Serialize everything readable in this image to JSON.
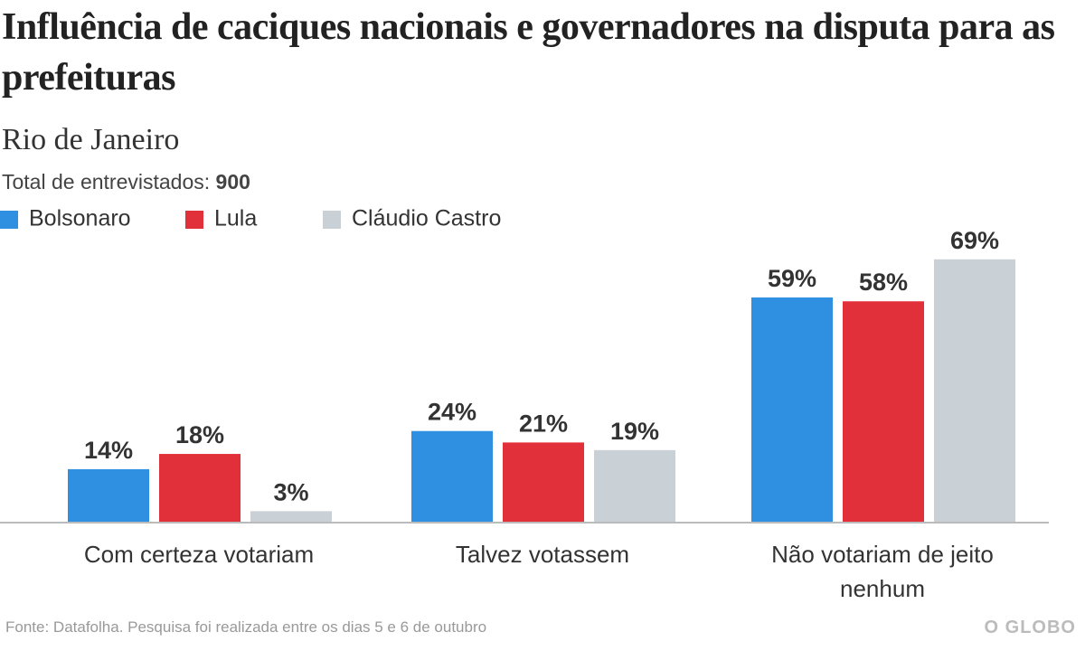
{
  "chart_data": {
    "type": "bar",
    "title": "Influência de caciques nacionais e governadores na disputa para as prefeituras",
    "subtitle": "Rio de Janeiro",
    "sample_label": "Total de entrevistados:",
    "sample_size": 900,
    "categories": [
      "Com certeza votariam",
      "Talvez votassem",
      "Não votariam de jeito nenhum"
    ],
    "series": [
      {
        "name": "Bolsonaro",
        "color": "#2f8fe0",
        "values": [
          14,
          24,
          59
        ],
        "value_labels": [
          "14%",
          "24%",
          "59%"
        ]
      },
      {
        "name": "Lula",
        "color": "#e2303a",
        "values": [
          18,
          21,
          58
        ],
        "value_labels": [
          "18%",
          "21%",
          "58%"
        ]
      },
      {
        "name": "Cláudio Castro",
        "color": "#c9d0d6",
        "values": [
          3,
          19,
          69
        ],
        "value_labels": [
          "3%",
          "19%",
          "69%"
        ]
      }
    ],
    "ylim": [
      0,
      100
    ],
    "source": "Fonte: Datafolha. Pesquisa foi realizada entre os dias 5 e 6 de outubro",
    "logo": "O GLOBO"
  }
}
